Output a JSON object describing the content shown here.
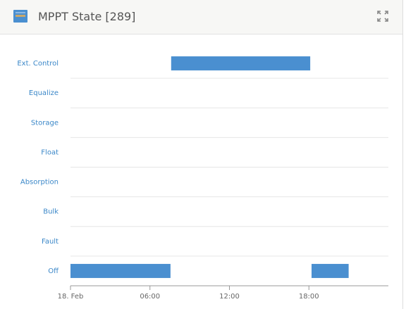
{
  "header": {
    "title": "MPPT State [289]"
  },
  "chart_data": {
    "type": "timeline",
    "categories": [
      "Ext. Control",
      "Equalize",
      "Storage",
      "Float",
      "Absorption",
      "Bulk",
      "Fault",
      "Off"
    ],
    "values": [
      [
        [
          7.6,
          18.1
        ]
      ],
      [],
      [],
      [],
      [],
      [],
      [],
      [
        [
          0,
          7.55
        ],
        [
          18.2,
          21
        ]
      ]
    ],
    "color": "#4a8fd0",
    "xlim": [
      0,
      24
    ],
    "xticks": [
      {
        "value": 0,
        "label": "18. Feb"
      },
      {
        "value": 6,
        "label": "06:00"
      },
      {
        "value": 12,
        "label": "12:00"
      },
      {
        "value": 18,
        "label": "18:00"
      }
    ],
    "grid": true
  }
}
